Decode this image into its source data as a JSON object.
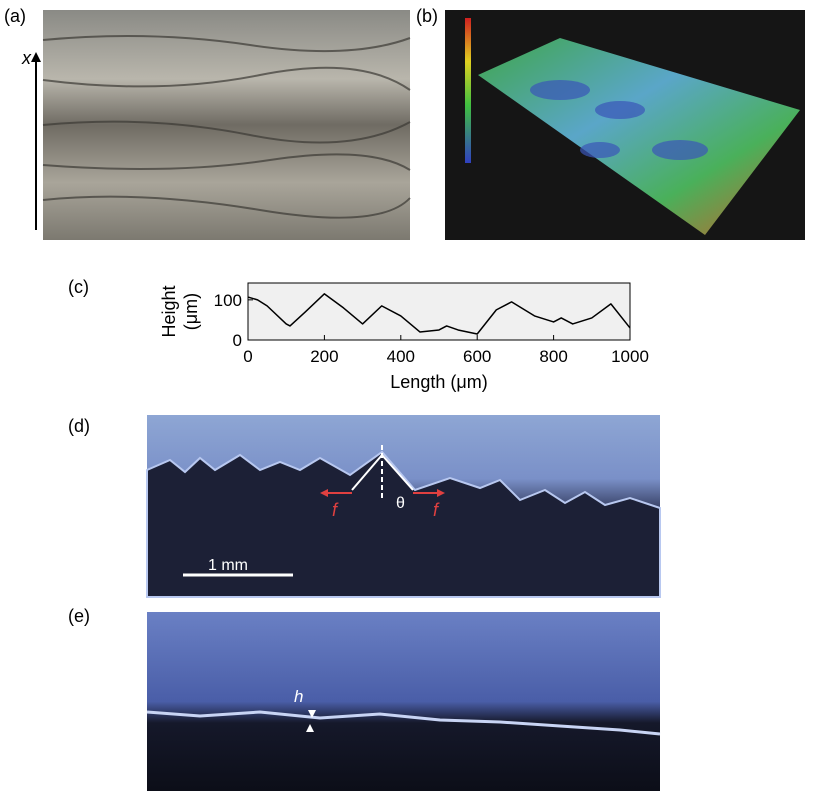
{
  "panels": {
    "a": "(a)",
    "b": "(b)",
    "c": "(c)",
    "d": "(d)",
    "e": "(e)"
  },
  "annotations": {
    "x_axis": "x",
    "scale_bar": "1 mm",
    "f_left": "f",
    "f_right": "f",
    "theta": "θ",
    "h": "h"
  },
  "chart_data": {
    "type": "line",
    "xlabel": "Length (μm)",
    "ylabel": [
      "Height",
      "(μm)"
    ],
    "x": [
      0,
      25,
      50,
      100,
      110,
      150,
      200,
      250,
      300,
      350,
      400,
      450,
      500,
      520,
      550,
      600,
      650,
      690,
      750,
      800,
      820,
      850,
      900,
      950,
      1000
    ],
    "values": [
      107,
      100,
      85,
      40,
      35,
      70,
      115,
      80,
      40,
      85,
      60,
      20,
      25,
      35,
      25,
      15,
      75,
      95,
      60,
      45,
      55,
      40,
      55,
      90,
      30
    ],
    "color": "#000000",
    "xlim": [
      0,
      1000
    ],
    "ylim": [
      0,
      142
    ],
    "xticks": [
      0,
      200,
      400,
      600,
      800,
      1000
    ],
    "yticks": [
      0,
      100
    ]
  }
}
